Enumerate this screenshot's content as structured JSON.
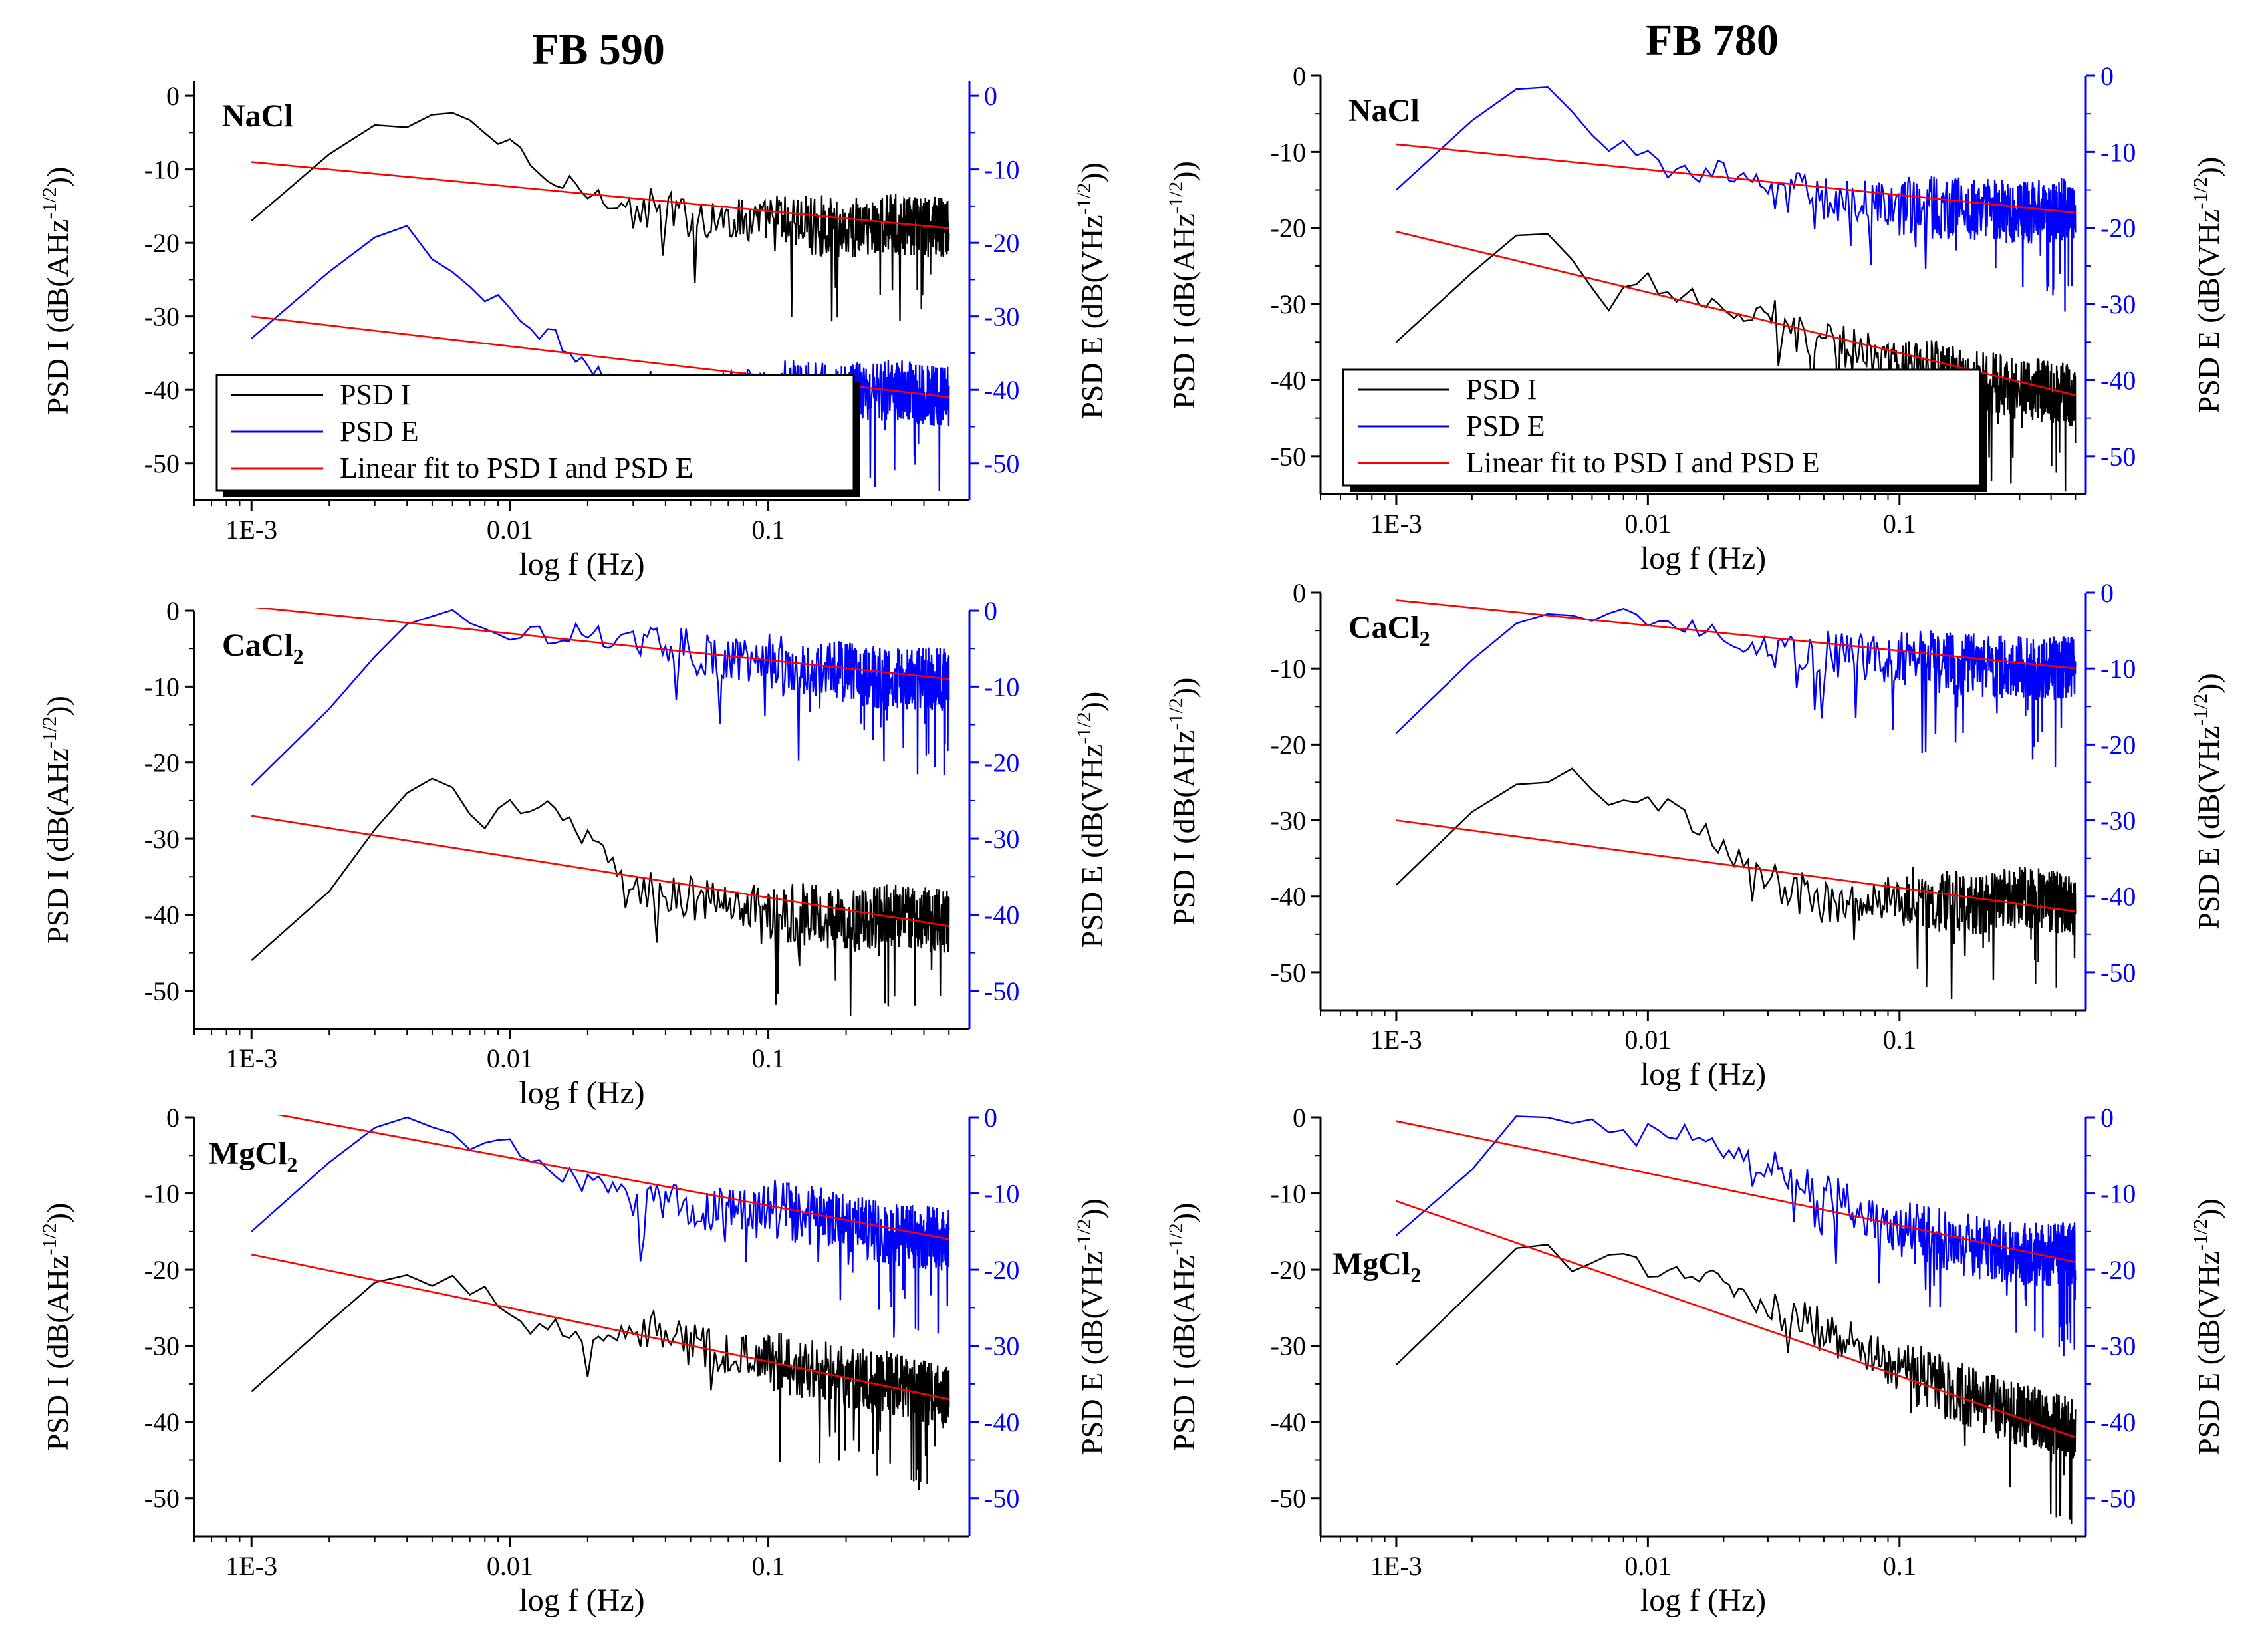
{
  "figure": {
    "columns": [
      {
        "title": "FB 590"
      },
      {
        "title": "FB 780"
      }
    ]
  },
  "colors": {
    "psd_i": "#000000",
    "psd_e": "#0000ff",
    "fit": "#ff0000",
    "right_axis": "#0000ff",
    "left_axis": "#000000"
  },
  "legend": {
    "entries": [
      {
        "label": "PSD I",
        "color": "#000000"
      },
      {
        "label": "PSD E",
        "color": "#0000ff"
      },
      {
        "label": "Linear fit to PSD I and PSD E",
        "color": "#ff0000"
      }
    ]
  },
  "chart_data": [
    {
      "type": "line",
      "column": "FB 590",
      "row": 1,
      "salt": "NaCl",
      "legend": true,
      "xlabel": "log f (Hz)",
      "ylabel_left": "PSD I (dB(AHz^-1/2))",
      "ylabel_right": "PSD E (dB(VHz^-1/2))",
      "x_scale": "log",
      "xlim": [
        0.0006,
        0.6
      ],
      "x_ticks": [
        "1E-3",
        "0.01",
        "0.1"
      ],
      "ylim_left": [
        -55,
        2
      ],
      "ylim_right": [
        -55,
        2
      ],
      "y_ticks_left": [
        0,
        -10,
        -20,
        -30,
        -40,
        -50
      ],
      "y_ticks_right": [
        0,
        -10,
        -20,
        -30,
        -40,
        -50
      ],
      "series": [
        {
          "name": "PSD I",
          "axis": "left",
          "x": [
            0.001,
            0.002,
            0.003,
            0.004,
            0.005,
            0.006,
            0.008,
            0.01,
            0.013,
            0.02,
            0.03,
            0.05,
            0.1,
            0.2,
            0.3,
            0.5
          ],
          "y": [
            -17,
            -8,
            -4,
            -4.5,
            -2.5,
            -1.5,
            -5,
            -7,
            -11,
            -13,
            -15,
            -16.5,
            -17,
            -18,
            -17.5,
            -18
          ]
        },
        {
          "name": "PSD E",
          "axis": "right",
          "x": [
            0.001,
            0.002,
            0.003,
            0.004,
            0.005,
            0.007,
            0.01,
            0.015,
            0.02,
            0.03,
            0.05,
            0.1,
            0.2,
            0.3,
            0.5
          ],
          "y": [
            -33,
            -24,
            -19,
            -17.5,
            -22,
            -26,
            -29,
            -33,
            -37,
            -40,
            -41,
            -40,
            -40.5,
            -40,
            -41
          ]
        },
        {
          "name": "Linear fit to PSD I and PSD E",
          "axis": "left",
          "x": [
            0.001,
            0.5
          ],
          "y": [
            -9,
            -18
          ]
        },
        {
          "name": "Linear fit to PSD I and PSD E",
          "axis": "right",
          "x": [
            0.001,
            0.5
          ],
          "y": [
            -30,
            -41
          ]
        }
      ]
    },
    {
      "type": "line",
      "column": "FB 590",
      "row": 2,
      "salt": "CaCl2",
      "legend": false,
      "xlabel": "log f (Hz)",
      "ylabel_left": "PSD I (dB(AHz^-1/2))",
      "ylabel_right": "PSD E (dB(VHz^-1/2))",
      "x_scale": "log",
      "xlim": [
        0.0006,
        0.6
      ],
      "x_ticks": [
        "1E-3",
        "0.01",
        "0.1"
      ],
      "ylim_left": [
        -55,
        0
      ],
      "ylim_right": [
        -55,
        0
      ],
      "y_ticks_left": [
        0,
        -10,
        -20,
        -30,
        -40,
        -50
      ],
      "y_ticks_right": [
        0,
        -10,
        -20,
        -30,
        -40,
        -50
      ],
      "series": [
        {
          "name": "PSD I",
          "axis": "left",
          "x": [
            0.001,
            0.002,
            0.003,
            0.004,
            0.005,
            0.006,
            0.008,
            0.01,
            0.015,
            0.02,
            0.03,
            0.05,
            0.1,
            0.2,
            0.3,
            0.5
          ],
          "y": [
            -46,
            -37,
            -29,
            -24,
            -22,
            -23,
            -29,
            -25,
            -26,
            -30,
            -36,
            -38,
            -39,
            -41,
            -40,
            -41
          ]
        },
        {
          "name": "PSD E",
          "axis": "right",
          "x": [
            0.001,
            0.002,
            0.003,
            0.004,
            0.005,
            0.006,
            0.008,
            0.01,
            0.02,
            0.03,
            0.05,
            0.1,
            0.2,
            0.3,
            0.5
          ],
          "y": [
            -23,
            -13,
            -6,
            -2,
            -0.5,
            0,
            -2,
            -3,
            -3,
            -4,
            -5.5,
            -7,
            -8,
            -9,
            -9
          ]
        },
        {
          "name": "Linear fit to PSD I and PSD E",
          "axis": "left",
          "x": [
            0.001,
            0.5
          ],
          "y": [
            -27,
            -41.5
          ]
        },
        {
          "name": "Linear fit to PSD I and PSD E",
          "axis": "right",
          "x": [
            0.001,
            0.5
          ],
          "y": [
            0.5,
            -9
          ]
        }
      ]
    },
    {
      "type": "line",
      "column": "FB 590",
      "row": 3,
      "salt": "MgCl2",
      "legend": false,
      "xlabel": "log f (Hz)",
      "ylabel_left": "PSD I (dB(AHz^-1/2))",
      "ylabel_right": "PSD E (dB(VHz^-1/2))",
      "x_scale": "log",
      "xlim": [
        0.0006,
        0.6
      ],
      "x_ticks": [
        "1E-3",
        "0.01",
        "0.1"
      ],
      "ylim_left": [
        -55,
        0
      ],
      "ylim_right": [
        -55,
        0
      ],
      "y_ticks_left": [
        0,
        -10,
        -20,
        -30,
        -40,
        -50
      ],
      "y_ticks_right": [
        0,
        -10,
        -20,
        -30,
        -40,
        -50
      ],
      "series": [
        {
          "name": "PSD I",
          "axis": "left",
          "x": [
            0.001,
            0.002,
            0.003,
            0.004,
            0.005,
            0.006,
            0.008,
            0.01,
            0.015,
            0.02,
            0.03,
            0.05,
            0.1,
            0.2,
            0.3,
            0.5
          ],
          "y": [
            -36,
            -27,
            -21.5,
            -20.5,
            -22,
            -21,
            -23,
            -25,
            -27,
            -31,
            -27,
            -30,
            -32,
            -34,
            -35,
            -37
          ]
        },
        {
          "name": "PSD E",
          "axis": "right",
          "x": [
            0.001,
            0.002,
            0.003,
            0.004,
            0.005,
            0.007,
            0.01,
            0.015,
            0.02,
            0.03,
            0.05,
            0.1,
            0.2,
            0.3,
            0.5
          ],
          "y": [
            -15,
            -6,
            -1.5,
            0,
            -1,
            -3,
            -4,
            -7,
            -9,
            -10,
            -12,
            -12,
            -14,
            -15.5,
            -16
          ]
        },
        {
          "name": "Linear fit to PSD I and PSD E",
          "axis": "left",
          "x": [
            0.001,
            0.5
          ],
          "y": [
            -18,
            -37
          ]
        },
        {
          "name": "Linear fit to PSD I and PSD E",
          "axis": "right",
          "x": [
            0.001,
            0.5
          ],
          "y": [
            1,
            -16
          ]
        }
      ]
    },
    {
      "type": "line",
      "column": "FB 780",
      "row": 1,
      "salt": "NaCl",
      "legend": true,
      "xlabel": "log f (Hz)",
      "ylabel_left": "PSD I (dB(AHz^-1/2))",
      "ylabel_right": "PSD E (dB(VHz^-1/2))",
      "x_scale": "log",
      "xlim": [
        0.0005,
        0.55
      ],
      "x_ticks": [
        "1E-3",
        "0.01",
        "0.1"
      ],
      "ylim_left": [
        -55,
        0
      ],
      "ylim_right": [
        -55,
        0
      ],
      "y_ticks_left": [
        0,
        -10,
        -20,
        -30,
        -40,
        -50
      ],
      "y_ticks_right": [
        0,
        -10,
        -20,
        -30,
        -40,
        -50
      ],
      "series": [
        {
          "name": "PSD I",
          "axis": "left",
          "x": [
            0.001,
            0.002,
            0.003,
            0.004,
            0.005,
            0.006,
            0.007,
            0.008,
            0.01,
            0.015,
            0.02,
            0.03,
            0.05,
            0.1,
            0.2,
            0.3,
            0.5
          ],
          "y": [
            -35,
            -26,
            -21,
            -21,
            -24,
            -28,
            -32,
            -29,
            -27,
            -29,
            -30,
            -32,
            -35,
            -38,
            -40,
            -41,
            -42
          ]
        },
        {
          "name": "PSD E",
          "axis": "right",
          "x": [
            0.001,
            0.002,
            0.003,
            0.004,
            0.005,
            0.006,
            0.007,
            0.008,
            0.01,
            0.015,
            0.02,
            0.03,
            0.05,
            0.1,
            0.2,
            0.3,
            0.5
          ],
          "y": [
            -15,
            -6,
            -1.5,
            -1.3,
            -5,
            -7,
            -11,
            -9,
            -10,
            -13,
            -12,
            -15,
            -16,
            -17,
            -17.5,
            -18,
            -17.5
          ]
        },
        {
          "name": "Linear fit to PSD I and PSD E",
          "axis": "left",
          "x": [
            0.001,
            0.5
          ],
          "y": [
            -20.5,
            -42
          ]
        },
        {
          "name": "Linear fit to PSD I and PSD E",
          "axis": "right",
          "x": [
            0.001,
            0.5
          ],
          "y": [
            -9,
            -18
          ]
        }
      ]
    },
    {
      "type": "line",
      "column": "FB 780",
      "row": 2,
      "salt": "CaCl2",
      "legend": false,
      "xlabel": "log f (Hz)",
      "ylabel_left": "PSD I (dB(AHz^-1/2))",
      "ylabel_right": "PSD E (dB(VHz^-1/2))",
      "x_scale": "log",
      "xlim": [
        0.0005,
        0.55
      ],
      "x_ticks": [
        "1E-3",
        "0.01",
        "0.1"
      ],
      "ylim_left": [
        -55,
        0
      ],
      "ylim_right": [
        -55,
        0
      ],
      "y_ticks_left": [
        0,
        -10,
        -20,
        -30,
        -40,
        -50
      ],
      "y_ticks_right": [
        0,
        -10,
        -20,
        -30,
        -40,
        -50
      ],
      "series": [
        {
          "name": "PSD I",
          "axis": "left",
          "x": [
            0.001,
            0.002,
            0.003,
            0.004,
            0.005,
            0.006,
            0.007,
            0.008,
            0.01,
            0.015,
            0.02,
            0.03,
            0.05,
            0.1,
            0.2,
            0.3,
            0.5
          ],
          "y": [
            -38.5,
            -29,
            -25.5,
            -25,
            -23,
            -26,
            -28.5,
            -26,
            -27,
            -30,
            -34,
            -38,
            -41,
            -40,
            -41,
            -40,
            -41
          ]
        },
        {
          "name": "PSD E",
          "axis": "right",
          "x": [
            0.001,
            0.002,
            0.003,
            0.004,
            0.006,
            0.008,
            0.01,
            0.015,
            0.02,
            0.03,
            0.05,
            0.1,
            0.2,
            0.3,
            0.5
          ],
          "y": [
            -18.5,
            -9,
            -4,
            -3,
            -3.5,
            -3,
            -3.5,
            -4,
            -6,
            -7,
            -8,
            -9,
            -9.5,
            -10,
            -10
          ]
        },
        {
          "name": "Linear fit to PSD I and PSD E",
          "axis": "left",
          "x": [
            0.001,
            0.5
          ],
          "y": [
            -30,
            -42
          ]
        },
        {
          "name": "Linear fit to PSD I and PSD E",
          "axis": "right",
          "x": [
            0.001,
            0.5
          ],
          "y": [
            -1,
            -10
          ]
        }
      ]
    },
    {
      "type": "line",
      "column": "FB 780",
      "row": 3,
      "salt": "MgCl2",
      "legend": false,
      "xlabel": "log f (Hz)",
      "ylabel_left": "PSD I (dB(AHz^-1/2))",
      "ylabel_right": "PSD E (dB(VHz^-1/2))",
      "x_scale": "log",
      "xlim": [
        0.0005,
        0.55
      ],
      "x_ticks": [
        "1E-3",
        "0.01",
        "0.1"
      ],
      "ylim_left": [
        -55,
        0
      ],
      "ylim_right": [
        -55,
        0
      ],
      "y_ticks_left": [
        0,
        -10,
        -20,
        -30,
        -40,
        -50
      ],
      "y_ticks_right": [
        0,
        -10,
        -20,
        -30,
        -40,
        -50
      ],
      "series": [
        {
          "name": "PSD I",
          "axis": "left",
          "x": [
            0.001,
            0.002,
            0.003,
            0.004,
            0.005,
            0.006,
            0.008,
            0.01,
            0.015,
            0.02,
            0.03,
            0.05,
            0.1,
            0.2,
            0.3,
            0.5
          ],
          "y": [
            -32.5,
            -23,
            -17,
            -16.5,
            -20,
            -19,
            -17,
            -20,
            -20,
            -22,
            -25,
            -28,
            -33,
            -37,
            -39,
            -41
          ]
        },
        {
          "name": "PSD E",
          "axis": "right",
          "x": [
            0.001,
            0.002,
            0.003,
            0.004,
            0.005,
            0.006,
            0.008,
            0.01,
            0.015,
            0.02,
            0.03,
            0.05,
            0.1,
            0.2,
            0.3,
            0.5
          ],
          "y": [
            -15.5,
            -7,
            0,
            0,
            -1,
            -0.5,
            -3,
            -2,
            -0.5,
            -4,
            -7,
            -10,
            -15,
            -17,
            -18,
            -18
          ]
        },
        {
          "name": "Linear fit to PSD I and PSD E",
          "axis": "left",
          "x": [
            0.001,
            0.5
          ],
          "y": [
            -11,
            -42
          ]
        },
        {
          "name": "Linear fit to PSD I and PSD E",
          "axis": "right",
          "x": [
            0.001,
            0.5
          ],
          "y": [
            -0.5,
            -19
          ]
        }
      ]
    }
  ]
}
